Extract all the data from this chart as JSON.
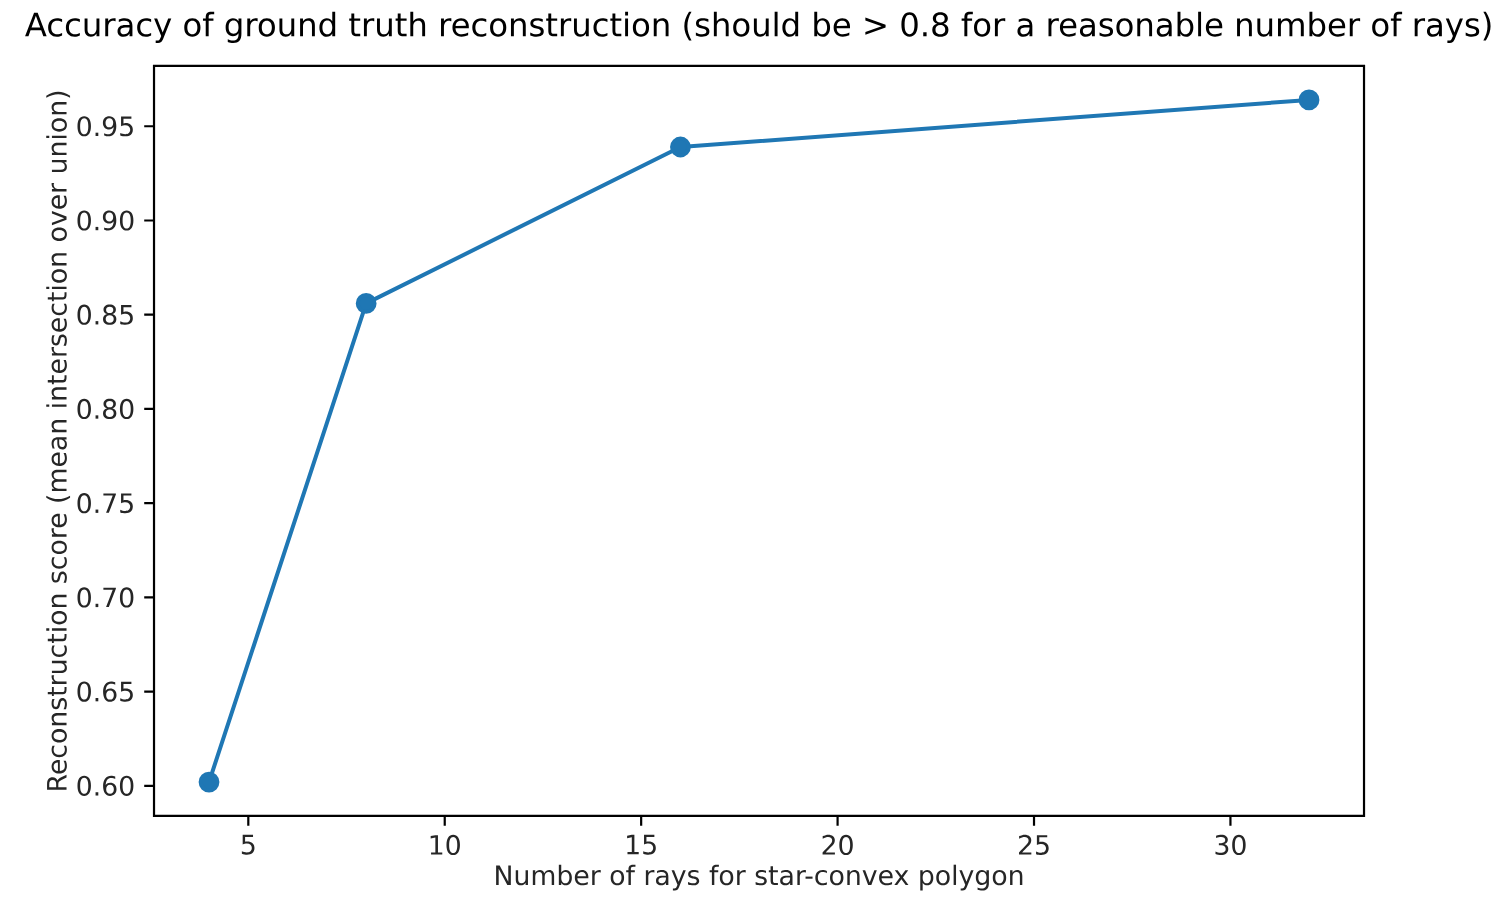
{
  "chart_data": {
    "type": "line",
    "title": "Accuracy of ground truth reconstruction (should be > 0.8 for a reasonable number of rays)",
    "xlabel": "Number of rays for star-convex polygon",
    "ylabel": "Reconstruction score (mean intersection over union)",
    "x": [
      4,
      8,
      16,
      32
    ],
    "series": [
      {
        "color": "#1f77b4",
        "values": [
          0.602,
          0.856,
          0.939,
          0.964
        ]
      }
    ],
    "marker": "circle",
    "line_style": "solid",
    "xlim": [
      2.6,
      33.4
    ],
    "ylim": [
      0.584,
      0.982
    ],
    "xticks": [
      5,
      10,
      15,
      20,
      25,
      30
    ],
    "yticks": [
      {
        "value": 0.6,
        "label": "0.60"
      },
      0.65,
      {
        "value": 0.7,
        "label": "0.70"
      },
      0.75,
      {
        "value": 0.8,
        "label": "0.80"
      },
      0.85,
      {
        "value": 0.9,
        "label": "0.90"
      },
      0.95
    ]
  }
}
